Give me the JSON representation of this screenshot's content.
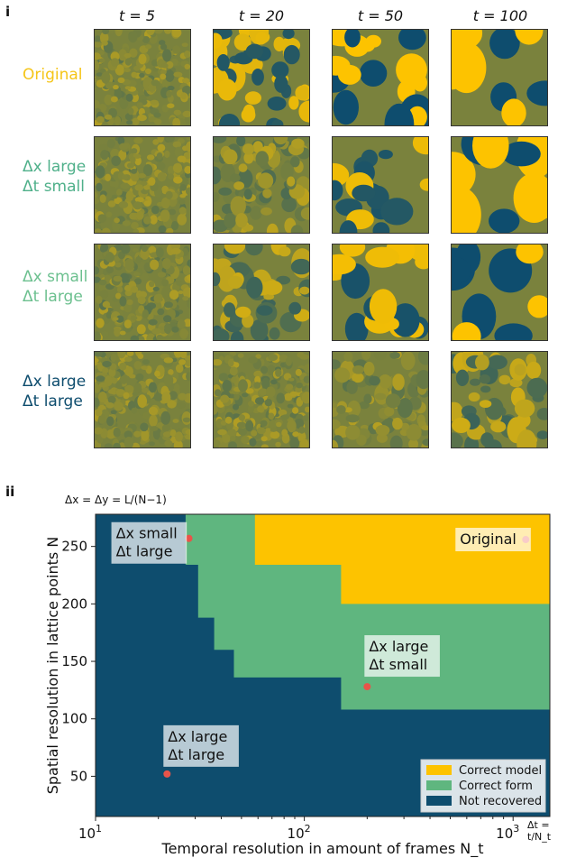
{
  "panel_i": {
    "label": "i",
    "time_titles": [
      "t = 5",
      "t = 20",
      "t = 50",
      "t = 100"
    ],
    "rows": [
      {
        "lines": [
          "Original"
        ],
        "color": "#f5c518"
      },
      {
        "lines": [
          "Δx large",
          "Δt small"
        ],
        "color": "#4fb08a"
      },
      {
        "lines": [
          "Δx small",
          "Δt large"
        ],
        "color": "#6cc08f"
      },
      {
        "lines": [
          "Δx large",
          "Δt large"
        ],
        "color": "#0e4d6e"
      }
    ]
  },
  "panel_ii": {
    "label": "ii",
    "top_note": "Δx = Δy = L/(N−1)",
    "corner_note": "Δt = t/N_t"
  },
  "colors": {
    "correct_model": "#fdc300",
    "correct_form": "#5fb67f",
    "not_recovered": "#0e4d6e",
    "point": "#e8544a"
  },
  "chart_data": {
    "type": "heatmap",
    "x_scale": "log",
    "xlim": [
      10,
      1500
    ],
    "ylim": [
      15,
      278
    ],
    "xlabel": "Temporal resolution in amount of frames N_t",
    "ylabel": "Spatial resolution in lattice points N",
    "x_ticks": [
      {
        "value": 10,
        "label": "10^1"
      },
      {
        "value": 100,
        "label": "10^2"
      },
      {
        "value": 1000,
        "label": "10^3"
      }
    ],
    "y_ticks": [
      50,
      100,
      150,
      200,
      250
    ],
    "legend": {
      "placement": "lower-right",
      "entries": [
        {
          "label": "Correct model",
          "color": "#fdc300"
        },
        {
          "label": "Correct form",
          "color": "#5fb67f"
        },
        {
          "label": "Not recovered",
          "color": "#0e4d6e"
        }
      ]
    },
    "regions": {
      "correct_form_boundary": [
        [
          27,
          278
        ],
        [
          27,
          234
        ],
        [
          31,
          234
        ],
        [
          31,
          188
        ],
        [
          37,
          188
        ],
        [
          37,
          160
        ],
        [
          46,
          160
        ],
        [
          46,
          136
        ],
        [
          150,
          136
        ],
        [
          150,
          108
        ],
        [
          1500,
          108
        ]
      ],
      "correct_model_boundary": [
        [
          58,
          278
        ],
        [
          58,
          234
        ],
        [
          150,
          234
        ],
        [
          150,
          200
        ],
        [
          1500,
          200
        ]
      ]
    },
    "points": [
      {
        "label": "Δx small Δt large",
        "x": 28,
        "y": 257
      },
      {
        "label": "Original",
        "x": 1150,
        "y": 256
      },
      {
        "label": "Δx large Δt small",
        "x": 200,
        "y": 128
      },
      {
        "label": "Δx large Δt large",
        "x": 22,
        "y": 52
      }
    ],
    "annotations": [
      {
        "lines": [
          "Δx small",
          "Δt large"
        ]
      },
      {
        "lines": [
          "Original"
        ]
      },
      {
        "lines": [
          "Δx large",
          "Δt small"
        ]
      },
      {
        "lines": [
          "Δx large",
          "Δt large"
        ]
      }
    ]
  }
}
